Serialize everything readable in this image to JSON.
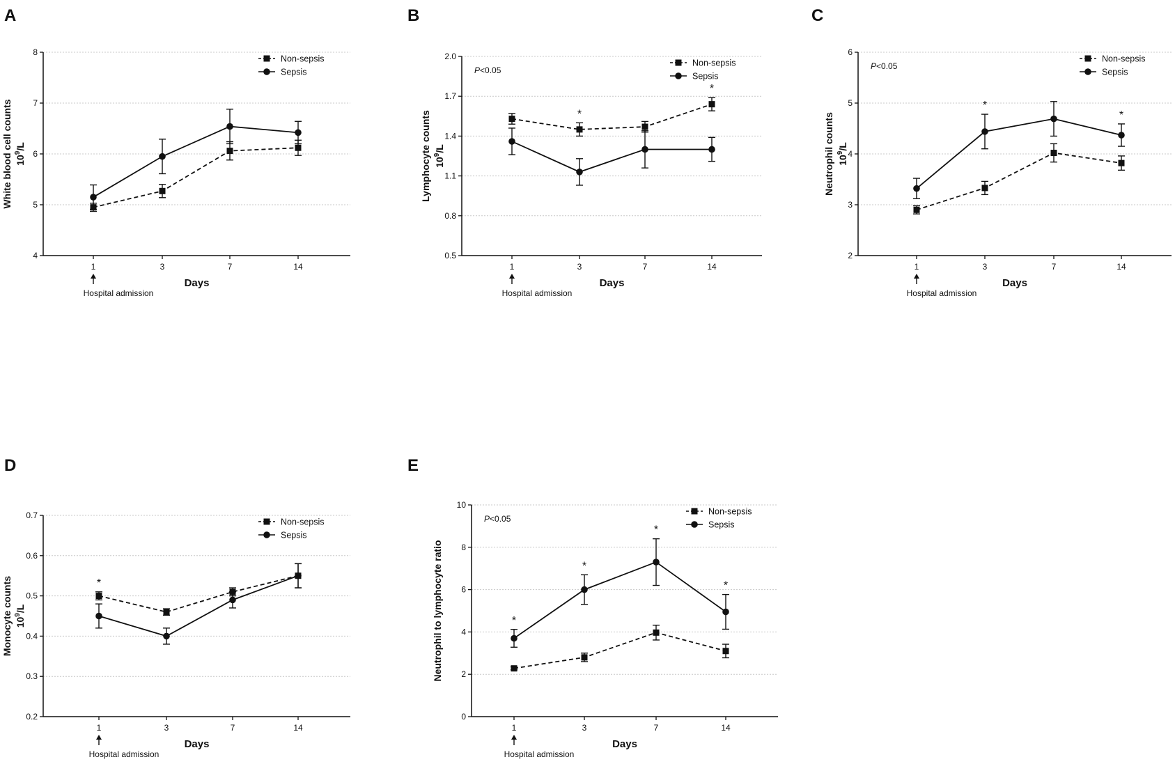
{
  "colors": {
    "ink": "#111111",
    "grid": "#c8c8c8"
  },
  "chart_data": [
    {
      "panel": "A",
      "type": "line",
      "title": "",
      "xlabel": "Days",
      "ylabel": "White blood cell counts",
      "ylabel_unit_base": "10",
      "ylabel_unit_exp": "9",
      "ylabel_unit_tail": "/L",
      "categories": [
        "1",
        "3",
        "7",
        "14"
      ],
      "ylim": [
        4,
        8
      ],
      "yticks": [
        4,
        5,
        6,
        7,
        8
      ],
      "ytick_labels": [
        "4",
        "5",
        "6",
        "7",
        "8"
      ],
      "grid": true,
      "legend_position": "top-right",
      "admission_label": "Hospital admission",
      "p_label": null,
      "series": [
        {
          "name": "Non-sepsis",
          "style": "dashed",
          "marker": "square",
          "values": [
            4.95,
            5.27,
            6.06,
            6.12
          ],
          "errors": [
            0.08,
            0.13,
            0.18,
            0.15
          ]
        },
        {
          "name": "Sepsis",
          "style": "solid",
          "marker": "circle",
          "values": [
            5.15,
            5.95,
            6.54,
            6.42
          ],
          "errors": [
            0.24,
            0.34,
            0.34,
            0.22
          ]
        }
      ],
      "significance": []
    },
    {
      "panel": "B",
      "type": "line",
      "title": "",
      "xlabel": "Days",
      "ylabel": "Lymphocyte  counts",
      "ylabel_unit_base": "10",
      "ylabel_unit_exp": "9",
      "ylabel_unit_tail": "/L",
      "categories": [
        "1",
        "3",
        "7",
        "14"
      ],
      "ylim": [
        0.5,
        2.0
      ],
      "yticks": [
        0.5,
        0.8,
        1.1,
        1.4,
        1.7,
        2.0
      ],
      "ytick_labels": [
        "0.5",
        "0.8",
        "1.1",
        "1.4",
        "1.7",
        "2.0"
      ],
      "grid": true,
      "legend_position": "top-right",
      "admission_label": "Hospital admission",
      "p_label": {
        "italic": "P",
        "rest": "<0.05"
      },
      "series": [
        {
          "name": "Non-sepsis",
          "style": "dashed",
          "marker": "square",
          "values": [
            1.53,
            1.45,
            1.47,
            1.64
          ],
          "errors": [
            0.04,
            0.05,
            0.04,
            0.05
          ]
        },
        {
          "name": "Sepsis",
          "style": "solid",
          "marker": "circle",
          "values": [
            1.36,
            1.13,
            1.3,
            1.3
          ],
          "errors": [
            0.1,
            0.1,
            0.14,
            0.09
          ]
        }
      ],
      "significance": [
        {
          "category_index": 1,
          "label": "*"
        },
        {
          "category_index": 3,
          "label": "*"
        }
      ]
    },
    {
      "panel": "C",
      "type": "line",
      "title": "",
      "xlabel": "Days",
      "ylabel": "Neutrophil counts",
      "ylabel_unit_base": "10",
      "ylabel_unit_exp": "9",
      "ylabel_unit_tail": "/L",
      "categories": [
        "1",
        "3",
        "7",
        "14"
      ],
      "ylim": [
        2,
        6
      ],
      "yticks": [
        2,
        3,
        4,
        5,
        6
      ],
      "ytick_labels": [
        "2",
        "3",
        "4",
        "5",
        "6"
      ],
      "grid": true,
      "legend_position": "top-right",
      "admission_label": "Hospital admission",
      "p_label": {
        "italic": "P",
        "rest": "<0.05"
      },
      "series": [
        {
          "name": "Non-sepsis",
          "style": "dashed",
          "marker": "square",
          "values": [
            2.9,
            3.33,
            4.02,
            3.82
          ],
          "errors": [
            0.08,
            0.13,
            0.18,
            0.14
          ]
        },
        {
          "name": "Sepsis",
          "style": "solid",
          "marker": "circle",
          "values": [
            3.32,
            4.44,
            4.69,
            4.37
          ],
          "errors": [
            0.2,
            0.34,
            0.34,
            0.22
          ]
        }
      ],
      "significance": [
        {
          "category_index": 1,
          "label": "*"
        },
        {
          "category_index": 3,
          "label": "*"
        }
      ]
    },
    {
      "panel": "D",
      "type": "line",
      "title": "",
      "xlabel": "Days",
      "ylabel": "Monocyte counts",
      "ylabel_unit_base": "10",
      "ylabel_unit_exp": "9",
      "ylabel_unit_tail": "/L",
      "categories": [
        "1",
        "3",
        "7",
        "14"
      ],
      "ylim": [
        0.2,
        0.7
      ],
      "yticks": [
        0.2,
        0.3,
        0.4,
        0.5,
        0.6,
        0.7
      ],
      "ytick_labels": [
        "0.2",
        "0.3",
        "0.4",
        "0.5",
        "0.6",
        "0.7"
      ],
      "grid": true,
      "legend_position": "top-right",
      "admission_label": "Hospital admission",
      "p_label": null,
      "series": [
        {
          "name": "Non-sepsis",
          "style": "dashed",
          "marker": "square",
          "values": [
            0.5,
            0.46,
            0.51,
            0.55
          ],
          "errors": [
            0.01,
            0.008,
            0.01,
            0.03
          ]
        },
        {
          "name": "Sepsis",
          "style": "solid",
          "marker": "circle",
          "values": [
            0.45,
            0.4,
            0.49,
            0.55
          ],
          "errors": [
            0.03,
            0.02,
            0.02,
            0.03
          ]
        }
      ],
      "significance": [
        {
          "category_index": 0,
          "label": "*"
        }
      ]
    },
    {
      "panel": "E",
      "type": "line",
      "title": "",
      "xlabel": "Days",
      "ylabel": "Neutrophil to lymphocyte ratio",
      "ylabel_unit_base": "",
      "ylabel_unit_exp": "",
      "ylabel_unit_tail": "",
      "categories": [
        "1",
        "3",
        "7",
        "14"
      ],
      "ylim": [
        0,
        10
      ],
      "yticks": [
        0,
        2,
        4,
        6,
        8,
        10
      ],
      "ytick_labels": [
        "0",
        "2",
        "4",
        "6",
        "8",
        "10"
      ],
      "grid": true,
      "legend_position": "top-right",
      "admission_label": "Hospital admission",
      "p_label": {
        "italic": "P",
        "rest": "<0.05"
      },
      "series": [
        {
          "name": "Non-sepsis",
          "style": "dashed",
          "marker": "square",
          "values": [
            2.28,
            2.8,
            3.97,
            3.1
          ],
          "errors": [
            0.07,
            0.2,
            0.35,
            0.32
          ]
        },
        {
          "name": "Sepsis",
          "style": "solid",
          "marker": "circle",
          "values": [
            3.7,
            6.0,
            7.3,
            4.95
          ],
          "errors": [
            0.42,
            0.7,
            1.1,
            0.82
          ]
        }
      ],
      "significance": [
        {
          "category_index": 0,
          "label": "*"
        },
        {
          "category_index": 1,
          "label": "*"
        },
        {
          "category_index": 2,
          "label": "*"
        },
        {
          "category_index": 3,
          "label": "*"
        }
      ]
    }
  ]
}
